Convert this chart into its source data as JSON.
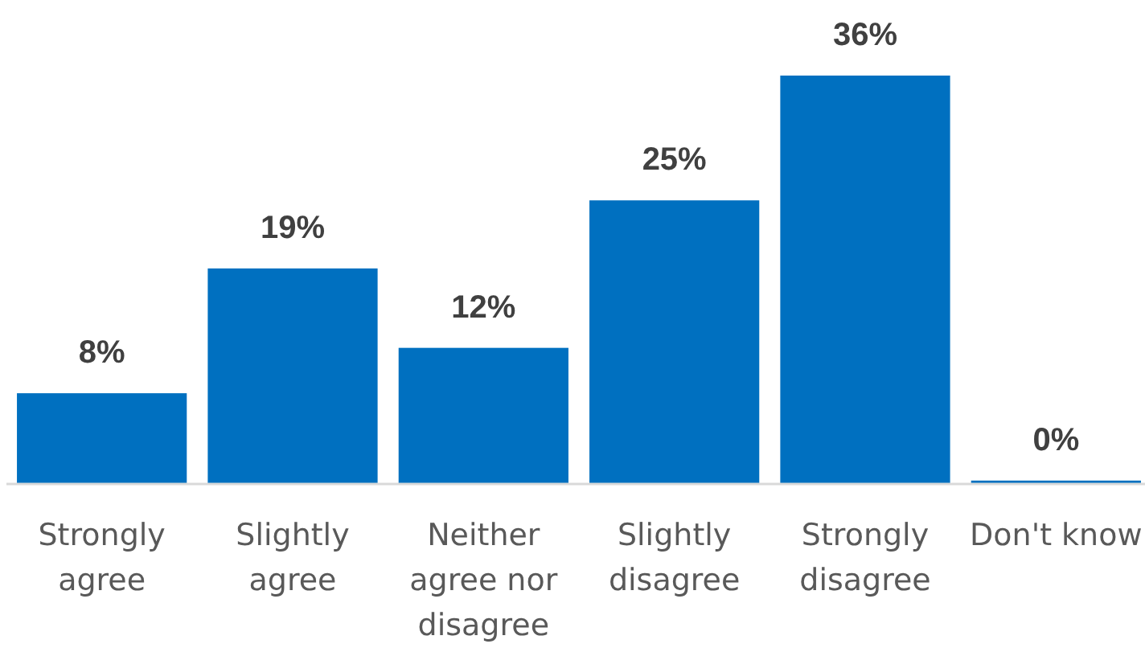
{
  "chart_data": {
    "type": "bar",
    "categories": [
      "Strongly agree",
      "Slightly agree",
      "Neither agree nor disagree",
      "Slightly disagree",
      "Strongly disagree",
      "Don't know"
    ],
    "values": [
      8,
      19,
      12,
      25,
      36,
      0.3
    ],
    "color": "#0070c0",
    "value_labels": [
      "8%",
      "19%",
      "12%",
      "25%",
      "36%",
      "0%"
    ],
    "tick_labels": "x"
  }
}
